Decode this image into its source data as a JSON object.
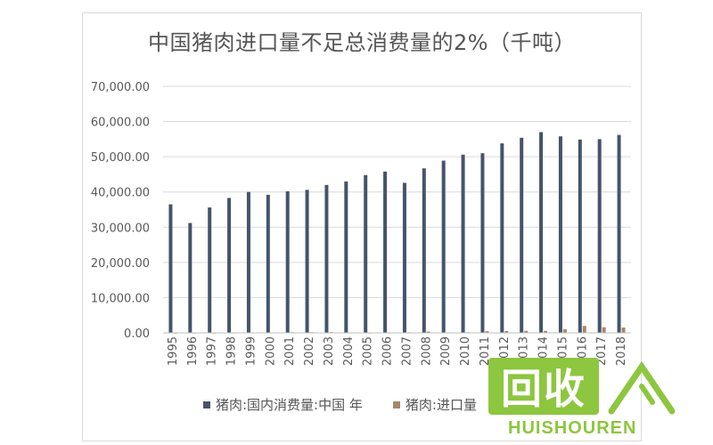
{
  "chart_data": {
    "type": "bar",
    "title": "中国猪肉进口量不足总消费量的2%（千吨）",
    "categories": [
      "1995",
      "1996",
      "1997",
      "1998",
      "1999",
      "2000",
      "2001",
      "2002",
      "2003",
      "2004",
      "2005",
      "2006",
      "2007",
      "2008",
      "2009",
      "2010",
      "2011",
      "2012",
      "2013",
      "2014",
      "2015",
      "2016",
      "2017",
      "2018"
    ],
    "series": [
      {
        "name": "猪肉:国内消费量:中国 年",
        "color": "#44546a",
        "values": [
          36500,
          31200,
          35600,
          38300,
          40000,
          39200,
          40200,
          40600,
          42000,
          43000,
          44800,
          45800,
          42600,
          46700,
          48900,
          50600,
          51000,
          53800,
          55400,
          57000,
          55800,
          54900,
          55000,
          56200
        ]
      },
      {
        "name": "猪肉:进口量",
        "color": "#a5886a",
        "values": [
          60,
          70,
          70,
          100,
          120,
          130,
          180,
          190,
          210,
          110,
          90,
          100,
          170,
          370,
          140,
          180,
          470,
          520,
          580,
          560,
          1030,
          1960,
          1600,
          1500
        ]
      }
    ],
    "yticks": [
      "0.00",
      "10,000.00",
      "20,000.00",
      "30,000.00",
      "40,000.00",
      "50,000.00",
      "60,000.00",
      "70,000.00"
    ],
    "ylim": [
      0,
      70000
    ],
    "grid": true,
    "legend": "bottom"
  },
  "legend": {
    "domestic": "猪肉:国内消费量:中国 年",
    "import": "猪肉:进口量"
  },
  "watermark": {
    "logo_text": "回收",
    "brand_text": "HUISHOUREN"
  }
}
